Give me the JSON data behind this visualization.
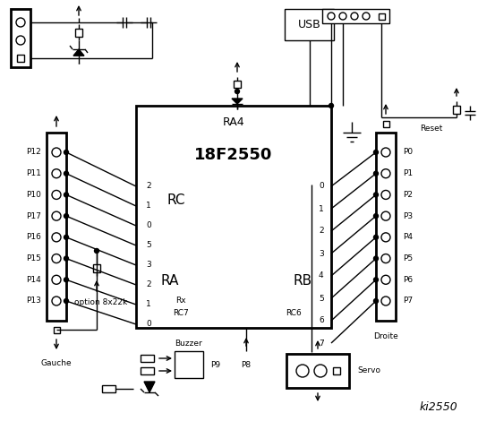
{
  "title": "ki2550",
  "bg_color": "#ffffff",
  "chip_label": "18F2550",
  "chip_sublabel": "RA4",
  "rc_label": "RC",
  "ra_label": "RA",
  "rb_label": "RB",
  "usb_label": "USB",
  "reset_label": "Reset",
  "gauche_label": "Gauche",
  "droite_label": "Droite",
  "servo_label": "Servo",
  "buzzer_label": "Buzzer",
  "option_label": "option 8x22k",
  "p9_label": "P9",
  "p8_label": "P8",
  "left_pins": [
    "P12",
    "P11",
    "P10",
    "P17",
    "P16",
    "P15",
    "P14",
    "P13"
  ],
  "rc_pins": [
    "2",
    "1",
    "0",
    "5",
    "3",
    "2",
    "1",
    "0"
  ],
  "rb_pins": [
    "0",
    "1",
    "2",
    "3",
    "4",
    "5",
    "6",
    "7"
  ],
  "right_pins": [
    "P0",
    "P1",
    "P2",
    "P3",
    "P4",
    "P5",
    "P6",
    "P7"
  ],
  "rx_label": "Rx",
  "rc7_label": "RC7",
  "rc6_label": "RC6"
}
